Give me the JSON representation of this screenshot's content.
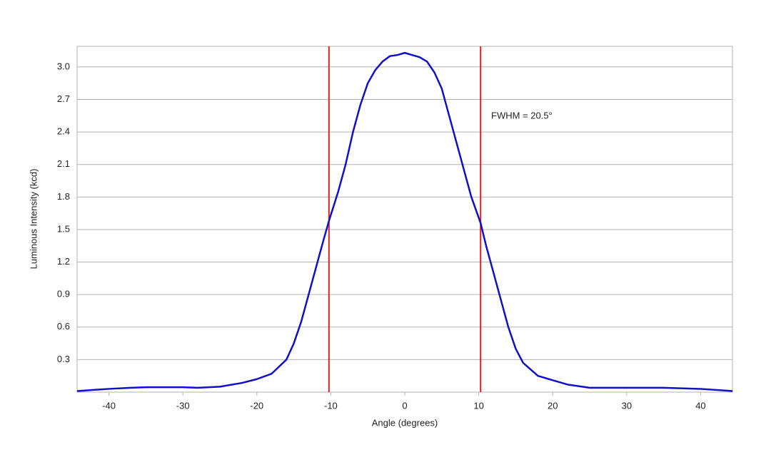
{
  "chart_data": {
    "type": "line",
    "x_label": "Angle (degrees)",
    "y_label": "Luminous Intensity (kcd)",
    "annotation": "FWHM = 20.5°",
    "xlim": [
      -44.3,
      44.3
    ],
    "ylim": [
      0,
      3.19
    ],
    "xticks": [
      -40,
      -30,
      -20,
      -10,
      0,
      10,
      20,
      30,
      40
    ],
    "yticks": [
      0.3,
      0.6,
      0.9,
      1.2,
      1.5,
      1.8,
      2.1,
      2.4,
      2.7,
      {
        "value": 3.0,
        "label": "3.0"
      }
    ],
    "grid": true,
    "fwhm_lines": {
      "color": "#e02020",
      "x": [
        -10.25,
        10.25
      ]
    },
    "series": [
      {
        "color": "#1010c8",
        "x": [
          -44.3,
          -40,
          -37,
          -35,
          -30,
          -28,
          -25,
          -22,
          -20,
          -18,
          -16,
          -15,
          -14,
          -13,
          -12,
          -11,
          -10.25,
          -9,
          -8,
          -7,
          -6,
          -5,
          -4,
          -3,
          -2,
          -1,
          0,
          1,
          2,
          3,
          4,
          5,
          6,
          7,
          8,
          9,
          10.25,
          11,
          12,
          13,
          14,
          15,
          16,
          18,
          20,
          22,
          25,
          30,
          35,
          40,
          44.3
        ],
        "values": [
          0.01,
          0.03,
          0.04,
          0.045,
          0.045,
          0.04,
          0.05,
          0.085,
          0.12,
          0.17,
          0.3,
          0.45,
          0.65,
          0.9,
          1.15,
          1.4,
          1.58,
          1.85,
          2.1,
          2.4,
          2.65,
          2.85,
          2.97,
          3.05,
          3.1,
          3.11,
          3.13,
          3.11,
          3.09,
          3.05,
          2.95,
          2.8,
          2.55,
          2.3,
          2.05,
          1.8,
          1.56,
          1.35,
          1.1,
          0.85,
          0.6,
          0.4,
          0.27,
          0.15,
          0.11,
          0.07,
          0.04,
          0.04,
          0.04,
          0.03,
          0.01
        ]
      }
    ]
  }
}
